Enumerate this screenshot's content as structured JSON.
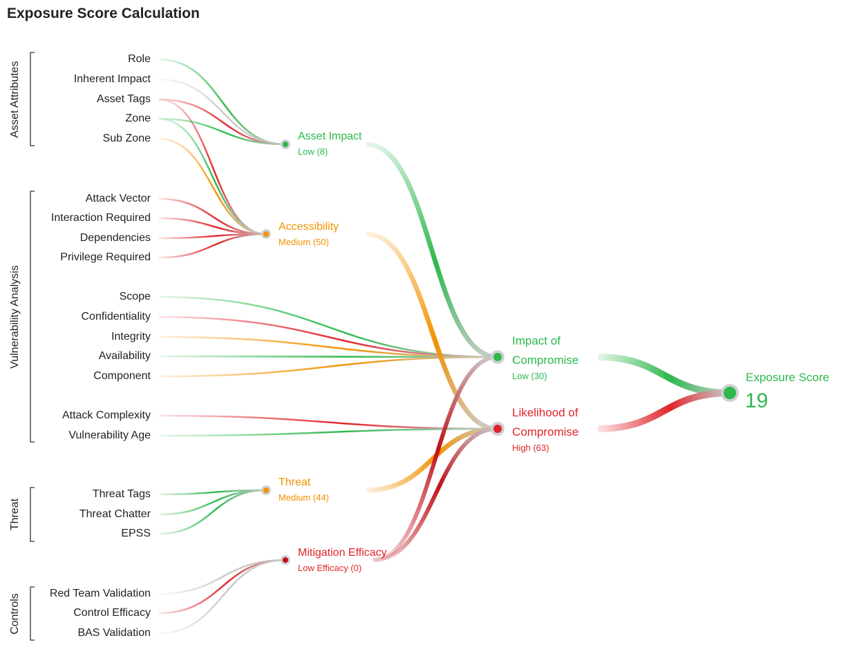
{
  "title": "Exposure Score Calculation",
  "groups": [
    {
      "label": "Asset Attributes"
    },
    {
      "label": "Vulnerability Analysis"
    },
    {
      "label": "Threat"
    },
    {
      "label": "Controls"
    }
  ],
  "inputs": [
    "Role",
    "Inherent Impact",
    "Asset Tags",
    "Zone",
    "Sub Zone",
    "Attack Vector",
    "Interaction Required",
    "Dependencies",
    "Privilege Required",
    "Scope",
    "Confidentiality",
    "Integrity",
    "Availability",
    "Component",
    "Attack Complexity",
    "Vulnerability Age",
    "Threat Tags",
    "Threat Chatter",
    "EPSS",
    "Red Team Validation",
    "Control Efficacy",
    "BAS Validation"
  ],
  "nodes": [
    {
      "label": "Asset Impact",
      "sublabel": "Low (8)"
    },
    {
      "label": "Accessibility",
      "sublabel": "Medium (50)"
    },
    {
      "label": "Threat",
      "sublabel": "Medium (44)"
    },
    {
      "label": "Mitigation Efficacy",
      "sublabel": "Low Efficacy (0)"
    },
    {
      "label": "Impact of Compromise",
      "sublabel": "Low (30)"
    },
    {
      "label": "Likelihood of Compromise",
      "sublabel": "High (63)"
    }
  ],
  "score": {
    "label": "Exposure Score",
    "value": 19
  }
}
